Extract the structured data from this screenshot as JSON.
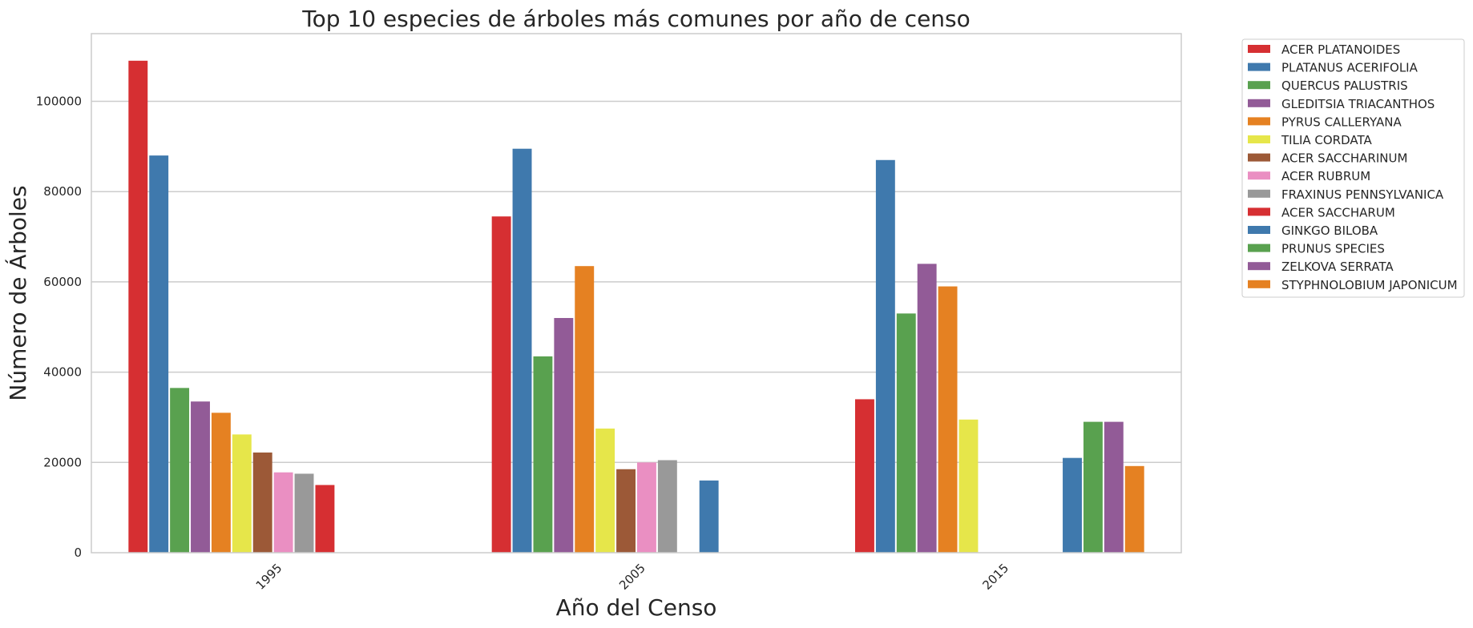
{
  "chart_data": {
    "type": "bar",
    "title": "Top 10 especies de árboles más comunes por año de censo",
    "xlabel": "Año del Censo",
    "ylabel": "Número de Árboles",
    "categories": [
      "1995",
      "2005",
      "2015"
    ],
    "ylim": [
      0,
      115000
    ],
    "yticks": [
      0,
      20000,
      40000,
      60000,
      80000,
      100000
    ],
    "yticks_labels": [
      "0",
      "20000",
      "40000",
      "60000",
      "80000",
      "100000"
    ],
    "grid": true,
    "legend_position": "upper right, outside plot",
    "series": [
      {
        "name": "ACER PLATANOIDES",
        "color": "#d62f32",
        "values": [
          109000,
          74500,
          34000
        ]
      },
      {
        "name": "PLATANUS ACERIFOLIA",
        "color": "#3f79ad",
        "values": [
          88000,
          89500,
          87000
        ]
      },
      {
        "name": "QUERCUS PALUSTRIS",
        "color": "#59a14f",
        "values": [
          36500,
          43500,
          53000
        ]
      },
      {
        "name": "GLEDITSIA TRIACANTHOS",
        "color": "#925b97",
        "values": [
          33500,
          52000,
          64000
        ]
      },
      {
        "name": "PYRUS CALLERYANA",
        "color": "#e58122",
        "values": [
          31000,
          63500,
          59000
        ]
      },
      {
        "name": "TILIA CORDATA",
        "color": "#e6e64a",
        "values": [
          26200,
          27500,
          29500
        ]
      },
      {
        "name": "ACER SACCHARINUM",
        "color": "#9c5937",
        "values": [
          22200,
          18500,
          null
        ]
      },
      {
        "name": "ACER RUBRUM",
        "color": "#ea8fc2",
        "values": [
          17800,
          20000,
          null
        ]
      },
      {
        "name": "FRAXINUS PENNSYLVANICA",
        "color": "#999999",
        "values": [
          17500,
          20500,
          null
        ]
      },
      {
        "name": "ACER SACCHARUM",
        "color": "#d62f32",
        "values": [
          15000,
          null,
          null
        ]
      },
      {
        "name": "GINKGO BILOBA",
        "color": "#3f79ad",
        "values": [
          null,
          16000,
          21000
        ]
      },
      {
        "name": "PRUNUS SPECIES",
        "color": "#59a14f",
        "values": [
          null,
          null,
          29000
        ]
      },
      {
        "name": "ZELKOVA SERRATA",
        "color": "#925b97",
        "values": [
          null,
          null,
          29000
        ]
      },
      {
        "name": "STYPHNOLOBIUM JAPONICUM",
        "color": "#e58122",
        "values": [
          null,
          null,
          19200
        ]
      }
    ]
  }
}
